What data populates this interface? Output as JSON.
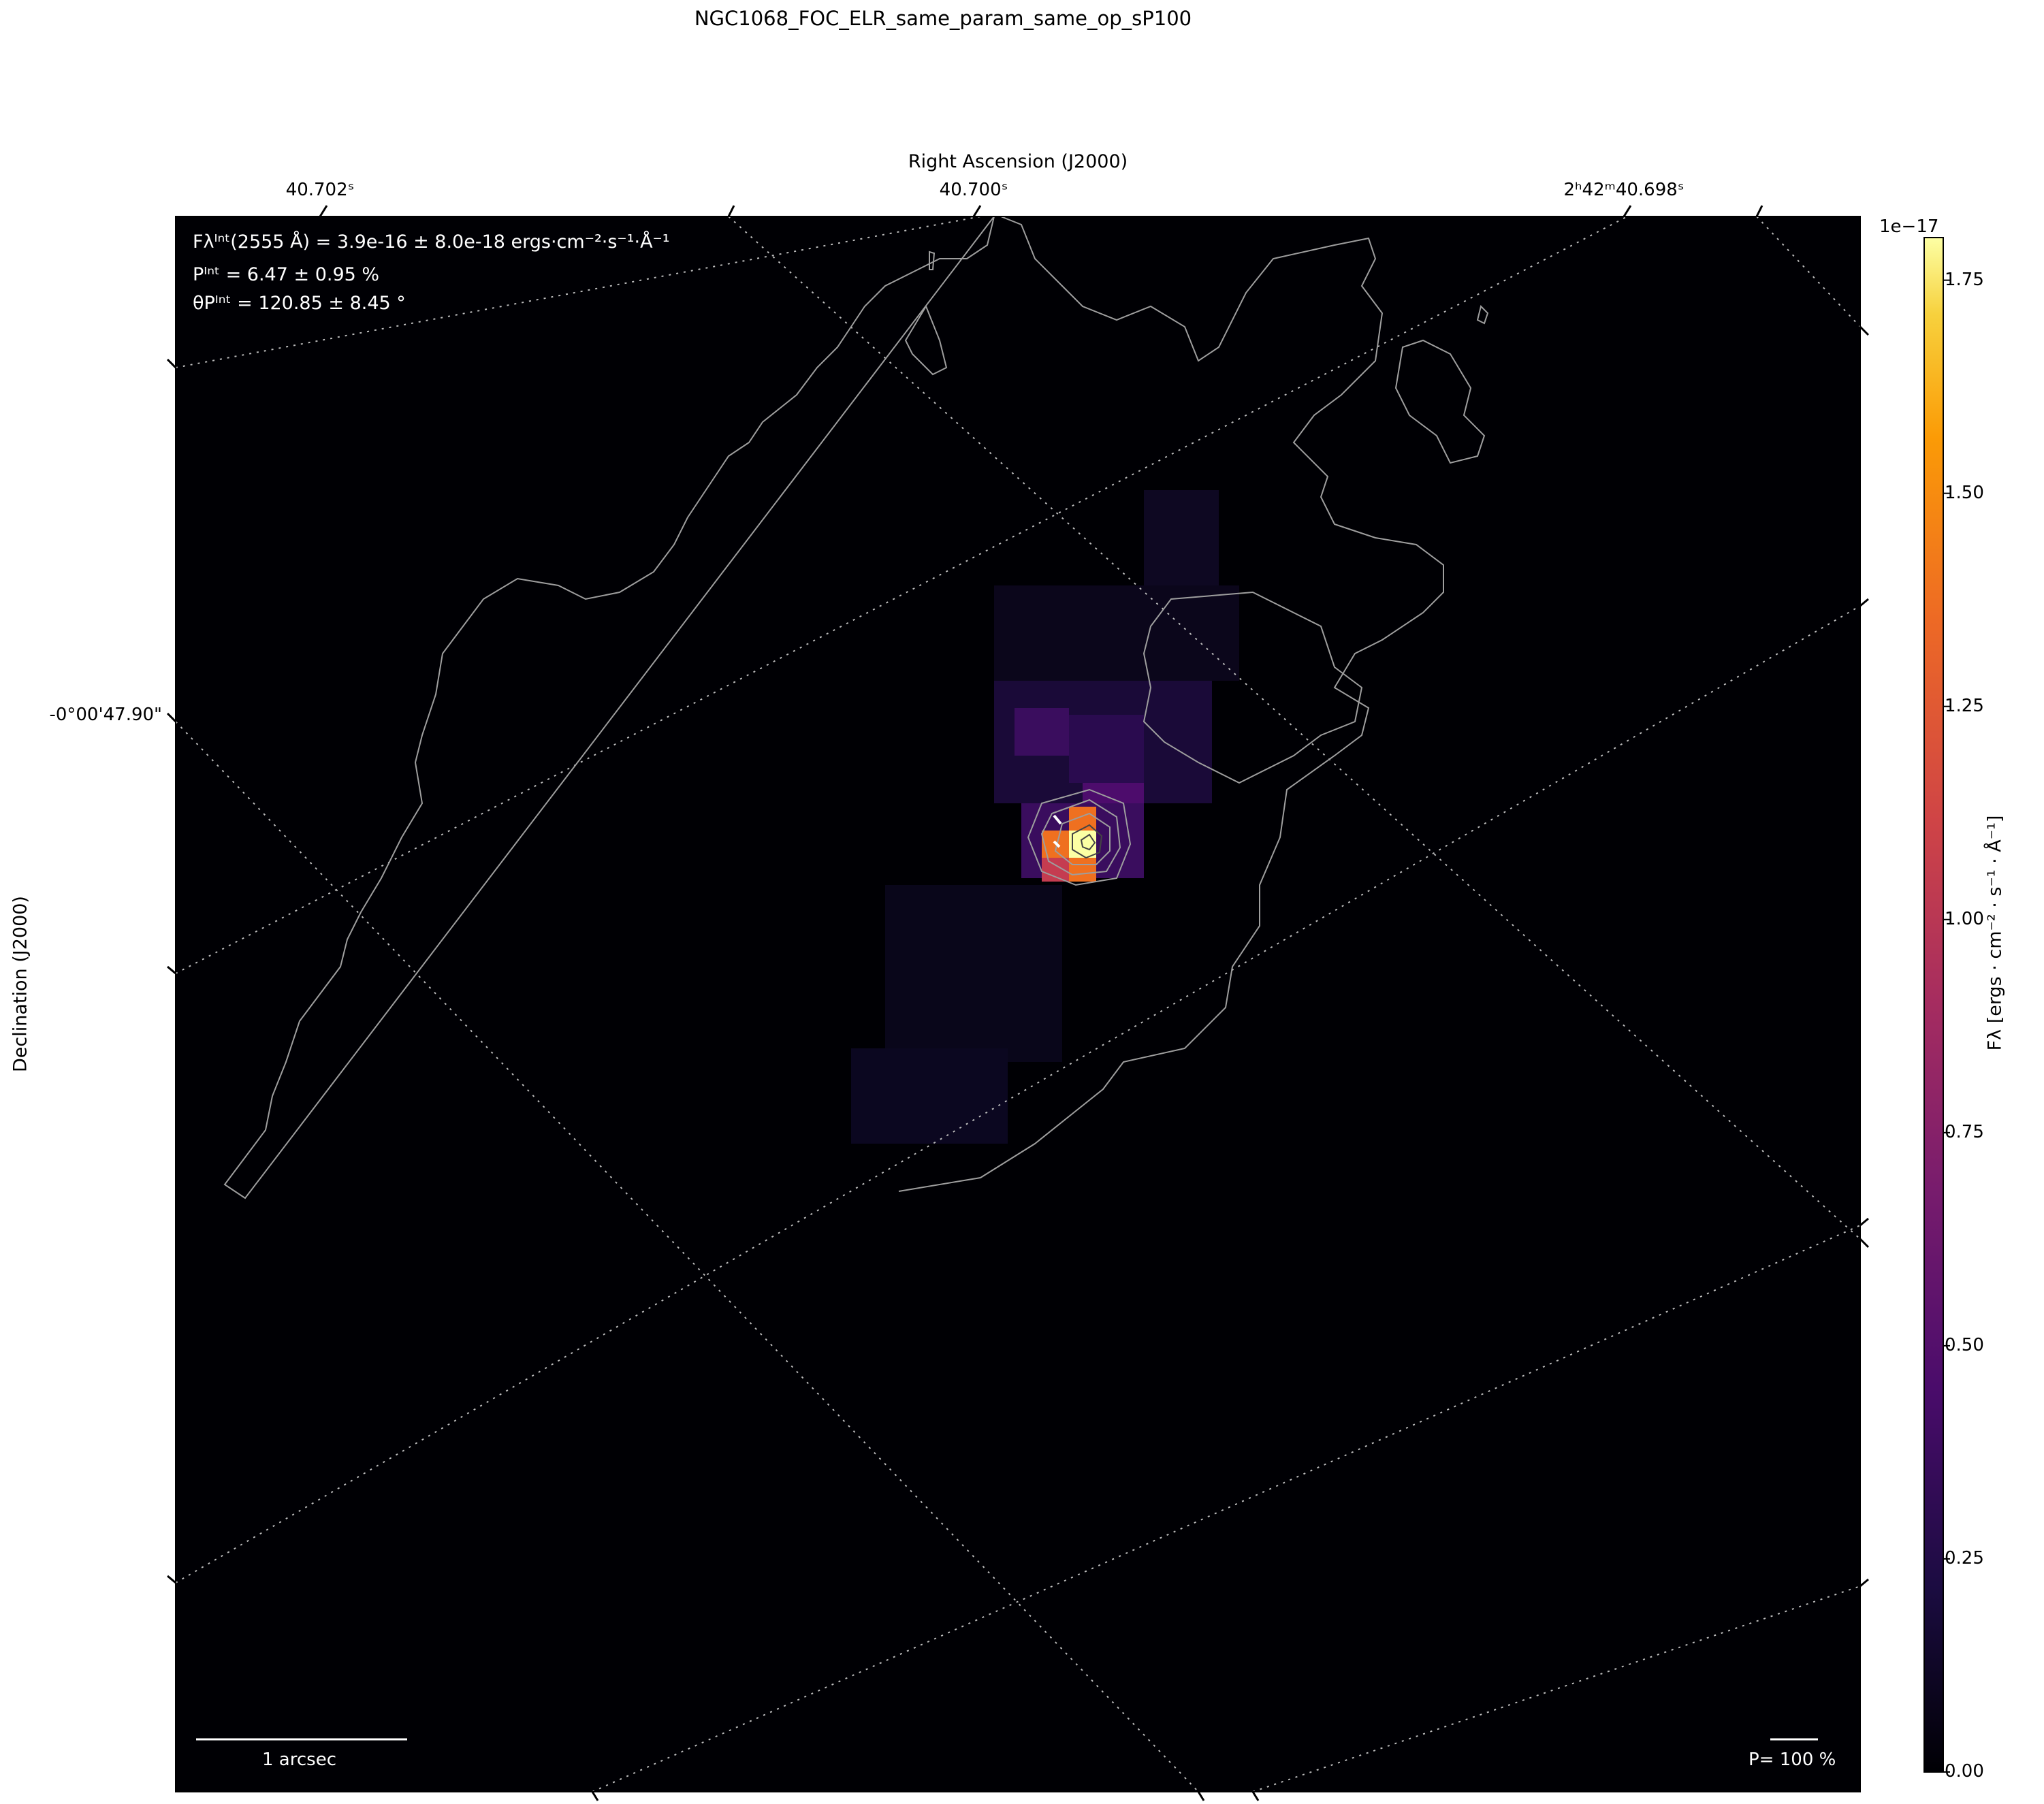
{
  "title": "NGC1068_FOC_ELR_same_param_same_op_sP100",
  "x_axis": {
    "label": "Right Ascension (J2000)",
    "ticks": [
      {
        "label": "40.702ˢ"
      },
      {
        "label": "40.700ˢ"
      },
      {
        "label": "2ʰ42ᵐ40.698ˢ"
      }
    ]
  },
  "y_axis": {
    "label": "Declination (J2000)",
    "ticks": [
      {
        "label": "-0°00'47.90\""
      }
    ]
  },
  "annotations": {
    "flux": "Fλᴵⁿᵗ(2555 Å) = 3.9e-16 ± 8.0e-18 ergs·cm⁻²·s⁻¹·Å⁻¹",
    "polarization": "Pᴵⁿᵗ = 6.47 ± 0.95 %",
    "angle": "θPᴵⁿᵗ = 120.85 ± 8.45 °"
  },
  "scale_bar": {
    "label": "1 arcsec"
  },
  "pol_legend": {
    "label": "P= 100 %"
  },
  "colorbar": {
    "exponent": "1e−17",
    "label": "Fλ [ergs · cm⁻² · s⁻¹ · Å⁻¹]",
    "ticks": [
      "0.00",
      "0.25",
      "0.50",
      "0.75",
      "1.00",
      "1.25",
      "1.50",
      "1.75"
    ],
    "colormap": "inferno"
  },
  "chart_data": {
    "type": "heatmap",
    "title": "NGC1068_FOC_ELR_same_param_same_op_sP100",
    "xlabel": "Right Ascension (J2000)",
    "ylabel": "Declination (J2000)",
    "colorbar_range": [
      0,
      1.8
    ],
    "colorbar_scale": "1e-17",
    "emission_peak_value": 1.8,
    "grid": true,
    "grid_style": "dotted world-coordinate grid",
    "contours": true
  }
}
